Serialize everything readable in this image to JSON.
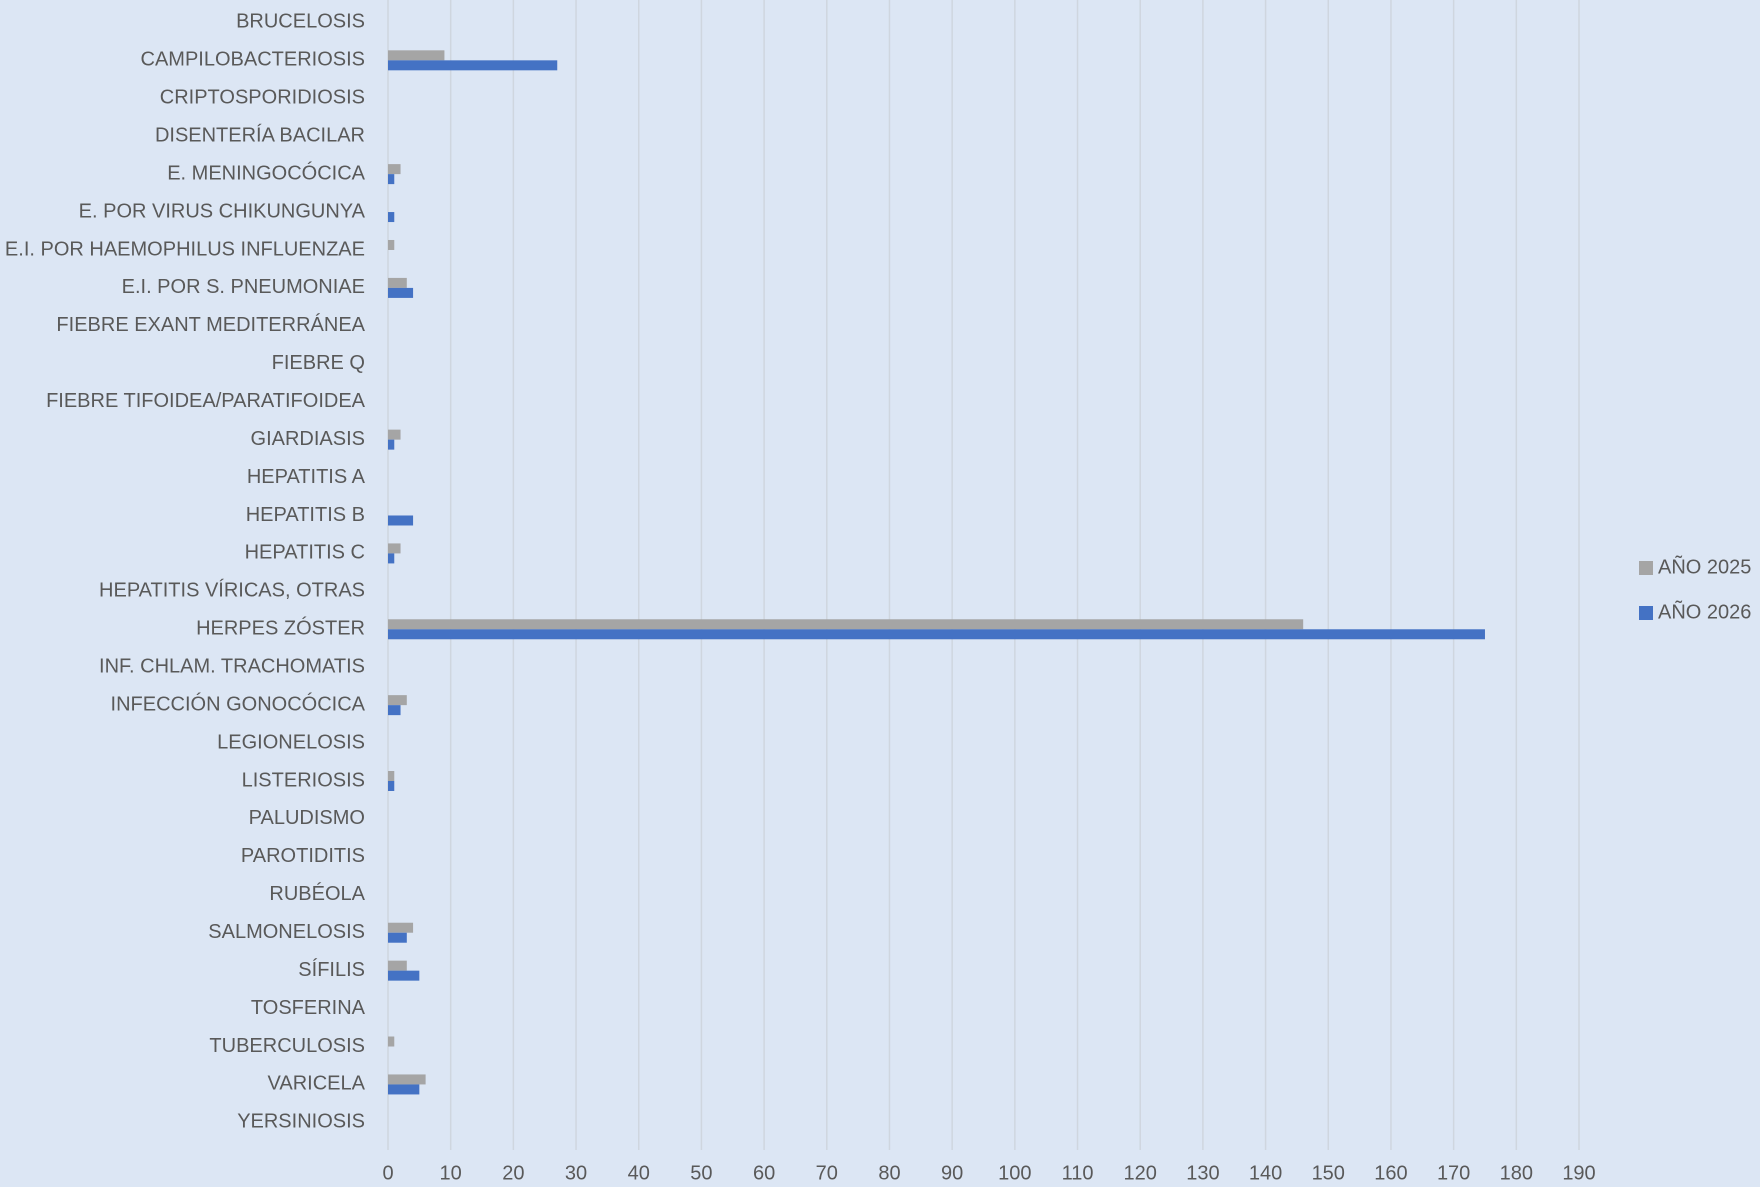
{
  "chart_data": {
    "type": "hbar",
    "categories": [
      "BRUCELOSIS",
      "CAMPILOBACTERIOSIS",
      "CRIPTOSPORIDIOSIS",
      "DISENTERÍA BACILAR",
      "E. MENINGOCÓCICA",
      "E. POR VIRUS CHIKUNGUNYA",
      "E.I. POR HAEMOPHILUS INFLUENZAE",
      "E.I. POR S. PNEUMONIAE",
      "FIEBRE EXANT MEDITERRÁNEA",
      "FIEBRE Q",
      "FIEBRE TIFOIDEA/PARATIFOIDEA",
      "GIARDIASIS",
      "HEPATITIS A",
      "HEPATITIS B",
      "HEPATITIS C",
      "HEPATITIS VÍRICAS, OTRAS",
      "HERPES ZÓSTER",
      "INF. CHLAM. TRACHOMATIS",
      "INFECCIÓN GONOCÓCICA",
      "LEGIONELOSIS",
      "LISTERIOSIS",
      "PALUDISMO",
      "PAROTIDITIS",
      "RUBÉOLA",
      "SALMONELOSIS",
      "SÍFILIS",
      "TOSFERINA",
      "TUBERCULOSIS",
      "VARICELA",
      "YERSINIOSIS"
    ],
    "series": [
      {
        "name": "AÑO 2025",
        "color": "#a5a5a5",
        "values": [
          0,
          9,
          0,
          0,
          2,
          0,
          1,
          3,
          0,
          0,
          0,
          2,
          0,
          0,
          2,
          0,
          146,
          0,
          3,
          0,
          1,
          0,
          0,
          0,
          4,
          3,
          0,
          1,
          6,
          0
        ]
      },
      {
        "name": "AÑO 2026",
        "color": "#4472c4",
        "values": [
          0,
          27,
          0,
          0,
          1,
          1,
          0,
          4,
          0,
          0,
          0,
          1,
          0,
          4,
          1,
          0,
          175,
          0,
          2,
          0,
          1,
          0,
          0,
          0,
          3,
          5,
          0,
          0,
          5,
          0
        ]
      }
    ],
    "xlim": [
      0,
      190
    ],
    "xticks": [
      0,
      10,
      20,
      30,
      40,
      50,
      60,
      70,
      80,
      90,
      100,
      110,
      120,
      130,
      140,
      150,
      160,
      170,
      180,
      190
    ],
    "grid": true,
    "legend": "right"
  }
}
